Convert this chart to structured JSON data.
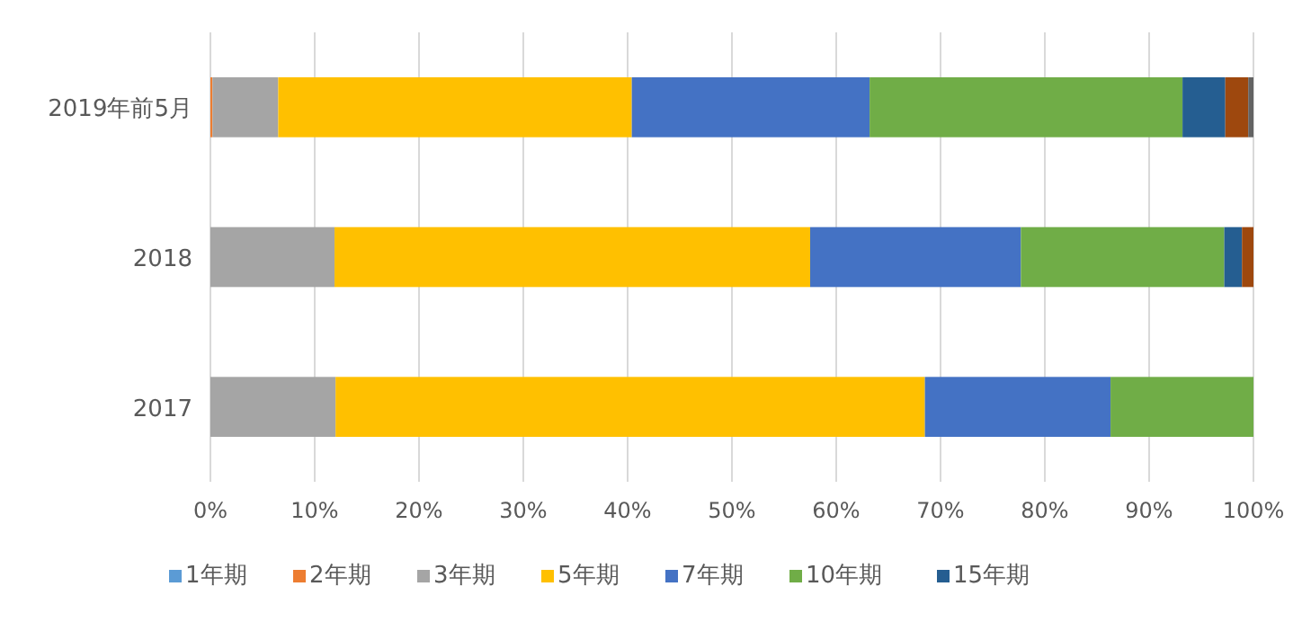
{
  "chart_data": {
    "type": "bar",
    "orientation": "horizontal",
    "stacked": true,
    "categories": [
      "2019年前5月",
      "2018",
      "2017"
    ],
    "series": [
      {
        "name": "1年期",
        "color": "#5b9bd5",
        "values": [
          0,
          0,
          0
        ]
      },
      {
        "name": "2年期",
        "color": "#ed7d31",
        "values": [
          0.2,
          0,
          0
        ]
      },
      {
        "name": "3年期",
        "color": "#a5a5a5",
        "values": [
          6.3,
          11.9,
          12.0
        ]
      },
      {
        "name": "5年期",
        "color": "#ffc000",
        "values": [
          33.9,
          45.6,
          56.5
        ]
      },
      {
        "name": "7年期",
        "color": "#4472c4",
        "values": [
          22.8,
          20.2,
          17.8
        ]
      },
      {
        "name": "10年期",
        "color": "#70ad47",
        "values": [
          30.0,
          19.5,
          13.7
        ]
      },
      {
        "name": "15年期",
        "color": "#255e91",
        "values": [
          4.1,
          1.7,
          0
        ]
      },
      {
        "color": "#9e480e",
        "values": [
          2.2,
          1.1,
          0
        ]
      },
      {
        "color": "#636363",
        "values": [
          0.5,
          0,
          0
        ]
      }
    ],
    "xlim": [
      0,
      100
    ],
    "xticks": [
      {
        "value": 0,
        "label": "0%"
      },
      {
        "value": 10,
        "label": "10%"
      },
      {
        "value": 20,
        "label": "20%"
      },
      {
        "value": 30,
        "label": "30%"
      },
      {
        "value": 40,
        "label": "40%"
      },
      {
        "value": 50,
        "label": "50%"
      },
      {
        "value": 60,
        "label": "60%"
      },
      {
        "value": 70,
        "label": "70%"
      },
      {
        "value": 80,
        "label": "80%"
      },
      {
        "value": 90,
        "label": "90%"
      },
      {
        "value": 100,
        "label": "100%"
      }
    ],
    "grid": "x",
    "legend": "bottom"
  }
}
